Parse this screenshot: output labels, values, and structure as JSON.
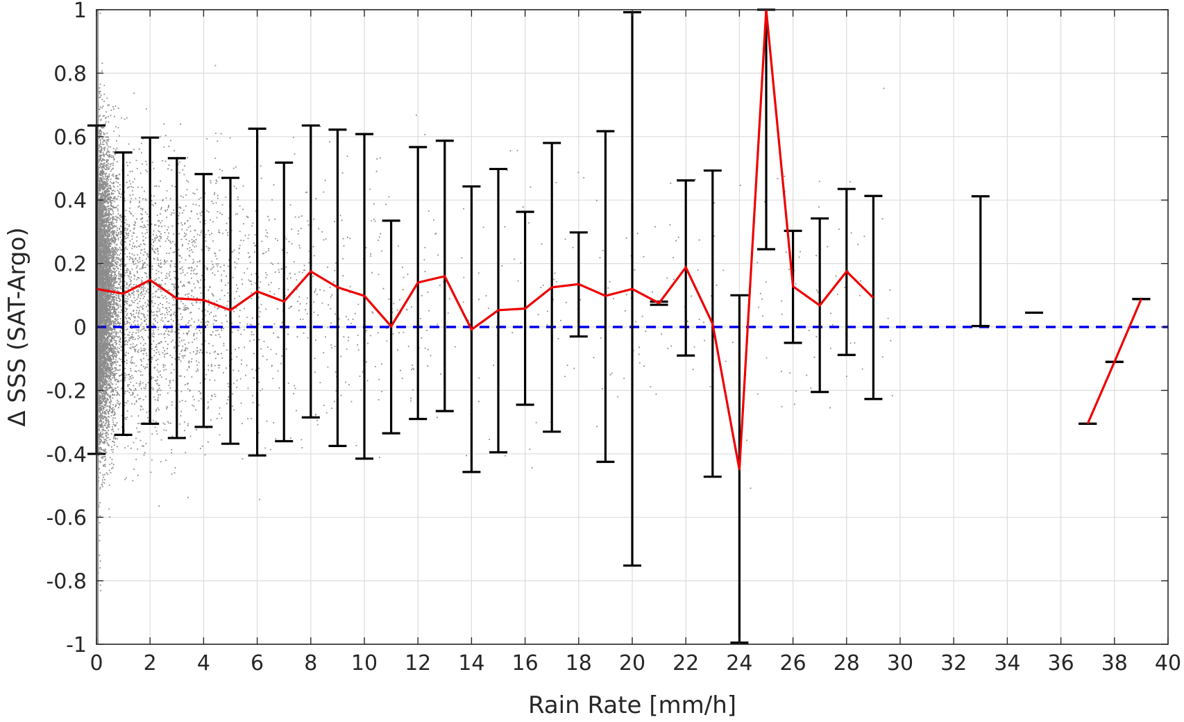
{
  "chart_data": {
    "type": "line",
    "title": "",
    "xlabel": "Rain Rate [mm/h]",
    "ylabel": "Δ SSS (SAT-Argo)",
    "xlim": [
      0,
      40
    ],
    "ylim": [
      -1,
      1
    ],
    "xticks": [
      "0",
      "2",
      "4",
      "6",
      "8",
      "10",
      "12",
      "14",
      "16",
      "18",
      "20",
      "22",
      "24",
      "26",
      "28",
      "30",
      "32",
      "34",
      "36",
      "38",
      "40"
    ],
    "yticks": [
      "-1",
      "-0.8",
      "-0.6",
      "-0.4",
      "-0.2",
      "0",
      "0.2",
      "0.4",
      "0.6",
      "0.8",
      "1"
    ],
    "grid": true,
    "reference_line": {
      "y": 0,
      "style": "dashed",
      "color": "#0000ee"
    },
    "mean_line_color": "#ee0000",
    "errorbar_color": "#000000",
    "scatter_color": "#8c8c8c",
    "mean_segments": [
      [
        {
          "x": 0,
          "y": 0.12
        },
        {
          "x": 1,
          "y": 0.105
        },
        {
          "x": 2,
          "y": 0.148
        },
        {
          "x": 3,
          "y": 0.09
        },
        {
          "x": 4,
          "y": 0.085
        },
        {
          "x": 5,
          "y": 0.053
        },
        {
          "x": 6,
          "y": 0.112
        },
        {
          "x": 7,
          "y": 0.08
        },
        {
          "x": 8,
          "y": 0.175
        },
        {
          "x": 9,
          "y": 0.125
        },
        {
          "x": 10,
          "y": 0.098
        },
        {
          "x": 11,
          "y": 0.002
        },
        {
          "x": 12,
          "y": 0.14
        },
        {
          "x": 13,
          "y": 0.16
        },
        {
          "x": 14,
          "y": -0.008
        },
        {
          "x": 15,
          "y": 0.053
        },
        {
          "x": 16,
          "y": 0.058
        },
        {
          "x": 17,
          "y": 0.125
        },
        {
          "x": 18,
          "y": 0.135
        },
        {
          "x": 19,
          "y": 0.098
        },
        {
          "x": 20,
          "y": 0.12
        },
        {
          "x": 21,
          "y": 0.075
        },
        {
          "x": 22,
          "y": 0.188
        },
        {
          "x": 23,
          "y": 0.01
        },
        {
          "x": 24,
          "y": -0.45
        },
        {
          "x": 25,
          "y": 1.0
        },
        {
          "x": 26,
          "y": 0.128
        },
        {
          "x": 27,
          "y": 0.068
        },
        {
          "x": 28,
          "y": 0.175
        },
        {
          "x": 29,
          "y": 0.092
        }
      ],
      [
        {
          "x": 37,
          "y": -0.305
        },
        {
          "x": 38,
          "y": -0.11
        },
        {
          "x": 39,
          "y": 0.088
        }
      ]
    ],
    "error_bars": [
      {
        "x": 0,
        "low": -0.4,
        "high": 0.635
      },
      {
        "x": 1,
        "low": -0.34,
        "high": 0.55
      },
      {
        "x": 2,
        "low": -0.305,
        "high": 0.597
      },
      {
        "x": 3,
        "low": -0.35,
        "high": 0.532
      },
      {
        "x": 4,
        "low": -0.315,
        "high": 0.482
      },
      {
        "x": 5,
        "low": -0.368,
        "high": 0.47
      },
      {
        "x": 6,
        "low": -0.405,
        "high": 0.625
      },
      {
        "x": 7,
        "low": -0.36,
        "high": 0.518
      },
      {
        "x": 8,
        "low": -0.285,
        "high": 0.635
      },
      {
        "x": 9,
        "low": -0.375,
        "high": 0.622
      },
      {
        "x": 10,
        "low": -0.415,
        "high": 0.608
      },
      {
        "x": 11,
        "low": -0.335,
        "high": 0.335
      },
      {
        "x": 12,
        "low": -0.29,
        "high": 0.567
      },
      {
        "x": 13,
        "low": -0.265,
        "high": 0.587
      },
      {
        "x": 14,
        "low": -0.457,
        "high": 0.443
      },
      {
        "x": 15,
        "low": -0.395,
        "high": 0.498
      },
      {
        "x": 16,
        "low": -0.245,
        "high": 0.363
      },
      {
        "x": 17,
        "low": -0.33,
        "high": 0.58
      },
      {
        "x": 18,
        "low": -0.03,
        "high": 0.298
      },
      {
        "x": 19,
        "low": -0.425,
        "high": 0.617
      },
      {
        "x": 20,
        "low": -0.752,
        "high": 0.992
      },
      {
        "x": 21,
        "low": 0.07,
        "high": 0.08
      },
      {
        "x": 22,
        "low": -0.09,
        "high": 0.462
      },
      {
        "x": 23,
        "low": -0.472,
        "high": 0.493
      },
      {
        "x": 24,
        "low": -0.995,
        "high": 0.1
      },
      {
        "x": 25,
        "low": 0.245,
        "high": 1.0
      },
      {
        "x": 26,
        "low": -0.05,
        "high": 0.303
      },
      {
        "x": 27,
        "low": -0.205,
        "high": 0.342
      },
      {
        "x": 28,
        "low": -0.088,
        "high": 0.435
      },
      {
        "x": 29,
        "low": -0.227,
        "high": 0.413
      },
      {
        "x": 33,
        "low": 0.003,
        "high": 0.412
      },
      {
        "x": 35,
        "low": 0.045,
        "high": 0.045
      },
      {
        "x": 37,
        "low": -0.305,
        "high": -0.305
      },
      {
        "x": 38,
        "low": -0.11,
        "high": -0.11
      },
      {
        "x": 39,
        "low": 0.088,
        "high": 0.088
      }
    ]
  }
}
